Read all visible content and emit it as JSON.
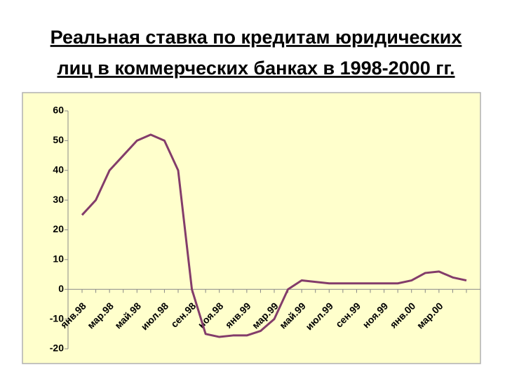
{
  "chart_data": {
    "type": "line",
    "title": [
      "Реальная ставка по кредитам юридических",
      "лиц в коммерческих банках в 1998-2000 гг."
    ],
    "categories": [
      "янв.98",
      null,
      "мар.98",
      null,
      "май.98",
      null,
      "июл.98",
      null,
      "сен.98",
      null,
      "ноя.98",
      null,
      "янв.99",
      null,
      "мар.99",
      null,
      "май.99",
      null,
      "июл.99",
      null,
      "сен.99",
      null,
      "ноя.99",
      null,
      "янв.00",
      null,
      "мар.00",
      null,
      null
    ],
    "series": [
      {
        "name": "Реальная ставка",
        "color": "#833c6a",
        "values": [
          25,
          30,
          40,
          45,
          50,
          52,
          50,
          40,
          0,
          -15,
          -16,
          -15.5,
          -15.5,
          -14,
          -10,
          0,
          3,
          2.5,
          2,
          2,
          2,
          2,
          2,
          2,
          3,
          5.5,
          6,
          4,
          3
        ]
      }
    ],
    "ylim": [
      -20,
      60
    ],
    "yticks": [
      -20,
      -10,
      0,
      10,
      20,
      30,
      40,
      50,
      60
    ]
  }
}
